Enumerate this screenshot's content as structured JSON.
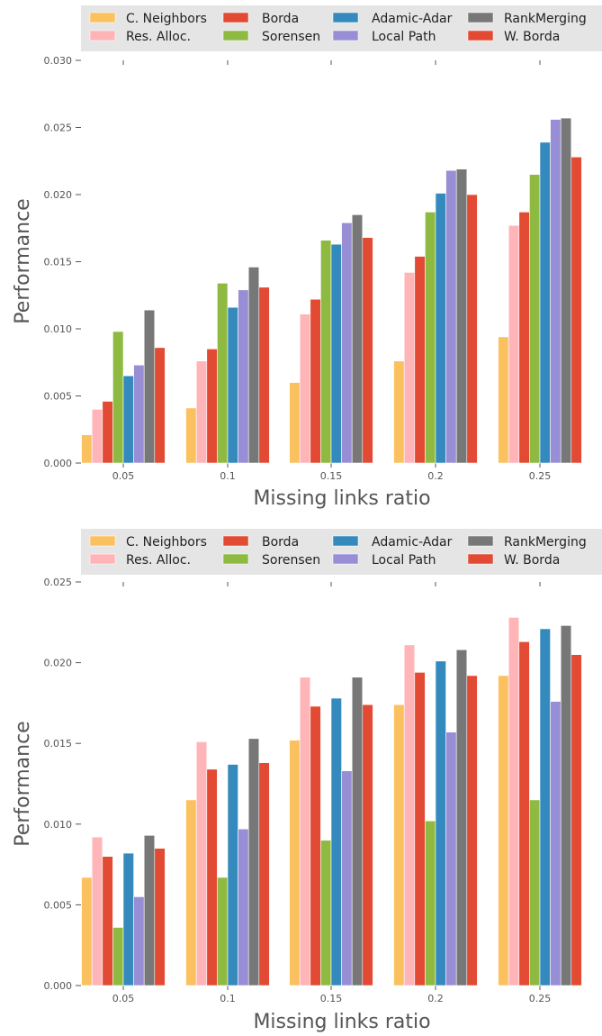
{
  "chart_data": [
    {
      "type": "bar",
      "xlabel": "Missing links ratio",
      "ylabel": "Performance",
      "ylim": [
        0,
        0.03
      ],
      "yticks": [
        "0.000",
        "0.005",
        "0.010",
        "0.015",
        "0.020",
        "0.025",
        "0.030"
      ],
      "categories": [
        "0.05",
        "0.1",
        "0.15",
        "0.2",
        "0.25"
      ],
      "grid": false,
      "legend_placement": "top",
      "series": [
        {
          "name": "C. Neighbors",
          "color": "#FBC15E",
          "values": [
            0.0021,
            0.0041,
            0.006,
            0.0076,
            0.0094
          ]
        },
        {
          "name": "Res. Alloc.",
          "color": "#FFB5B8",
          "values": [
            0.004,
            0.0076,
            0.0111,
            0.0142,
            0.0177
          ]
        },
        {
          "name": "Borda",
          "color": "#E24A33",
          "values": [
            0.0046,
            0.0085,
            0.0122,
            0.0154,
            0.0187
          ]
        },
        {
          "name": "Sorensen",
          "color": "#8EBA42",
          "values": [
            0.0098,
            0.0134,
            0.0166,
            0.0187,
            0.0215
          ]
        },
        {
          "name": "Adamic-Adar",
          "color": "#348ABD",
          "values": [
            0.0065,
            0.0116,
            0.0163,
            0.0201,
            0.0239
          ]
        },
        {
          "name": "Local Path",
          "color": "#988ED5",
          "values": [
            0.0073,
            0.0129,
            0.0179,
            0.0218,
            0.0256
          ]
        },
        {
          "name": "RankMerging",
          "color": "#777777",
          "values": [
            0.0114,
            0.0146,
            0.0185,
            0.0219,
            0.0257
          ]
        },
        {
          "name": "W. Borda",
          "color": "#E24A33",
          "values": [
            0.0086,
            0.0131,
            0.0168,
            0.02,
            0.0228
          ]
        }
      ]
    },
    {
      "type": "bar",
      "xlabel": "Missing links ratio",
      "ylabel": "Performance",
      "ylim": [
        0,
        0.025
      ],
      "yticks": [
        "0.000",
        "0.005",
        "0.010",
        "0.015",
        "0.020",
        "0.025"
      ],
      "categories": [
        "0.05",
        "0.1",
        "0.15",
        "0.2",
        "0.25"
      ],
      "grid": false,
      "legend_placement": "top",
      "series": [
        {
          "name": "C. Neighbors",
          "color": "#FBC15E",
          "values": [
            0.0067,
            0.0115,
            0.0152,
            0.0174,
            0.0192
          ]
        },
        {
          "name": "Res. Alloc.",
          "color": "#FFB5B8",
          "values": [
            0.0092,
            0.0151,
            0.0191,
            0.0211,
            0.0228
          ]
        },
        {
          "name": "Borda",
          "color": "#E24A33",
          "values": [
            0.008,
            0.0134,
            0.0173,
            0.0194,
            0.0213
          ]
        },
        {
          "name": "Sorensen",
          "color": "#8EBA42",
          "values": [
            0.0036,
            0.0067,
            0.009,
            0.0102,
            0.0115
          ]
        },
        {
          "name": "Adamic-Adar",
          "color": "#348ABD",
          "values": [
            0.0082,
            0.0137,
            0.0178,
            0.0201,
            0.0221
          ]
        },
        {
          "name": "Local Path",
          "color": "#988ED5",
          "values": [
            0.0055,
            0.0097,
            0.0133,
            0.0157,
            0.0176
          ]
        },
        {
          "name": "RankMerging",
          "color": "#777777",
          "values": [
            0.0093,
            0.0153,
            0.0191,
            0.0208,
            0.0223
          ]
        },
        {
          "name": "W. Borda",
          "color": "#E24A33",
          "values": [
            0.0085,
            0.0138,
            0.0174,
            0.0192,
            0.0205
          ]
        }
      ]
    }
  ]
}
